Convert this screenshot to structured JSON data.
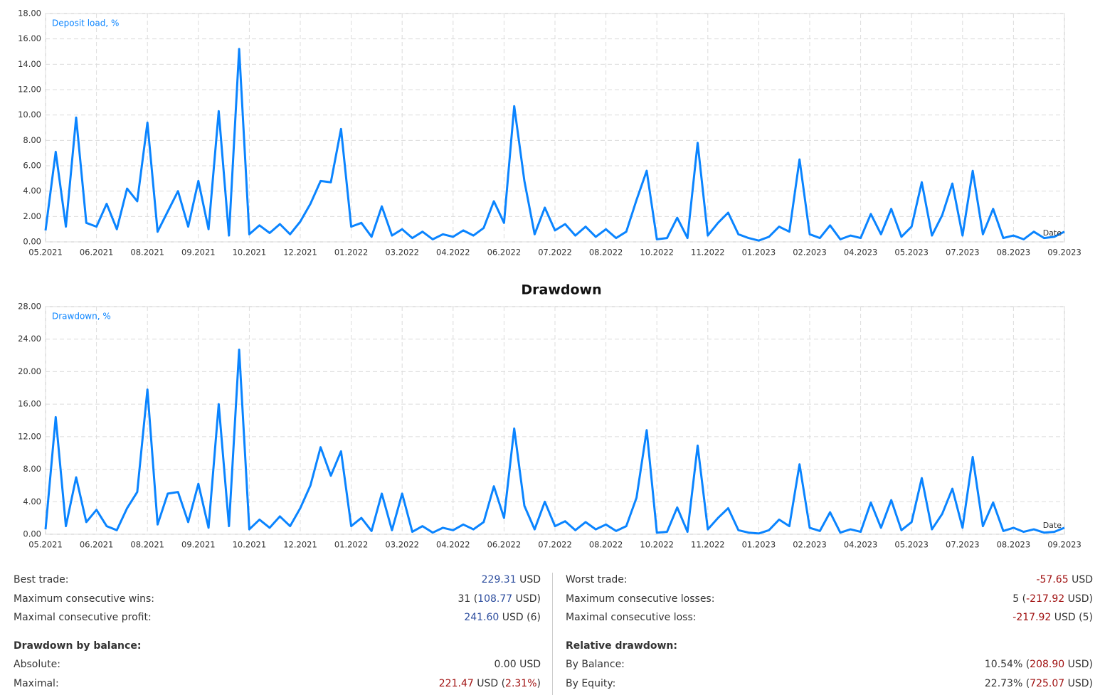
{
  "chart_data": [
    {
      "type": "line",
      "series": [
        {
          "name": "Deposit load, %",
          "color": "#0a84ff",
          "values": [
            0.9,
            7.1,
            1.2,
            9.8,
            1.5,
            1.2,
            3.0,
            1.0,
            4.2,
            3.2,
            9.4,
            0.8,
            2.4,
            4.0,
            1.2,
            4.8,
            1.0,
            10.3,
            0.5,
            15.2,
            0.6,
            1.3,
            0.7,
            1.4,
            0.6,
            1.6,
            3.0,
            4.8,
            4.7,
            8.9,
            1.2,
            1.5,
            0.4,
            2.8,
            0.5,
            1.0,
            0.3,
            0.8,
            0.2,
            0.6,
            0.4,
            0.9,
            0.5,
            1.1,
            3.2,
            1.5,
            10.7,
            4.8,
            0.6,
            2.7,
            0.9,
            1.4,
            0.5,
            1.2,
            0.4,
            1.0,
            0.3,
            0.8,
            3.3,
            5.6,
            0.2,
            0.3,
            1.9,
            0.3,
            7.8,
            0.5,
            1.5,
            2.3,
            0.6,
            0.3,
            0.1,
            0.4,
            1.2,
            0.8,
            6.5,
            0.6,
            0.3,
            1.3,
            0.2,
            0.5,
            0.3,
            2.2,
            0.6,
            2.6,
            0.4,
            1.2,
            4.7,
            0.5,
            2.1,
            4.6,
            0.5,
            5.6,
            0.6,
            2.6,
            0.3,
            0.5,
            0.2,
            0.8,
            0.3,
            0.4,
            0.8
          ]
        }
      ],
      "x": [
        0,
        0.2,
        0.4,
        0.6,
        0.8,
        1,
        1.2,
        1.4,
        1.6,
        1.8,
        2,
        2.2,
        2.4,
        2.6,
        2.8,
        3,
        3.2,
        3.4,
        3.6,
        3.8,
        4,
        4.2,
        4.4,
        4.6,
        4.8,
        5,
        5.2,
        5.4,
        5.6,
        5.8,
        6,
        6.2,
        6.4,
        6.6,
        6.8,
        7,
        7.2,
        7.4,
        7.6,
        7.8,
        8,
        8.2,
        8.4,
        8.6,
        8.8,
        9,
        9.2,
        9.4,
        9.6,
        9.8,
        10,
        10.2,
        10.4,
        10.6,
        10.8,
        11,
        11.2,
        11.4,
        11.6,
        11.8,
        12,
        12.2,
        12.4,
        12.6,
        12.8,
        13,
        13.2,
        13.4,
        13.6,
        13.8,
        14,
        14.2,
        14.4,
        14.6,
        14.8,
        15,
        15.2,
        15.4,
        15.6,
        15.8,
        16,
        16.2,
        16.4,
        16.6,
        16.8,
        17,
        17.2,
        17.4,
        17.6,
        17.8,
        18,
        18.2,
        18.4,
        18.6,
        18.8,
        19,
        19.2,
        19.4,
        19.6,
        19.8,
        20
      ],
      "x_label": "Date",
      "xlim": [
        0,
        20
      ],
      "xticks": [
        {
          "value": 0,
          "label": "05.2021"
        },
        {
          "value": 1,
          "label": "06.2021"
        },
        {
          "value": 2,
          "label": "08.2021"
        },
        {
          "value": 3,
          "label": "09.2021"
        },
        {
          "value": 4,
          "label": "10.2021"
        },
        {
          "value": 5,
          "label": "12.2021"
        },
        {
          "value": 6,
          "label": "01.2022"
        },
        {
          "value": 7,
          "label": "03.2022"
        },
        {
          "value": 8,
          "label": "04.2022"
        },
        {
          "value": 9,
          "label": "06.2022"
        },
        {
          "value": 10,
          "label": "07.2022"
        },
        {
          "value": 11,
          "label": "08.2022"
        },
        {
          "value": 12,
          "label": "10.2022"
        },
        {
          "value": 13,
          "label": "11.2022"
        },
        {
          "value": 14,
          "label": "01.2023"
        },
        {
          "value": 15,
          "label": "02.2023"
        },
        {
          "value": 16,
          "label": "04.2023"
        },
        {
          "value": 17,
          "label": "05.2023"
        },
        {
          "value": 18,
          "label": "07.2023"
        },
        {
          "value": 19,
          "label": "08.2023"
        },
        {
          "value": 20,
          "label": "09.2023"
        }
      ],
      "ylim": [
        0,
        18
      ],
      "yticks": [
        {
          "value": 0,
          "label": "0.00"
        },
        {
          "value": 2,
          "label": "2.00"
        },
        {
          "value": 4,
          "label": "4.00"
        },
        {
          "value": 6,
          "label": "6.00"
        },
        {
          "value": 8,
          "label": "8.00"
        },
        {
          "value": 10,
          "label": "10.00"
        },
        {
          "value": 12,
          "label": "12.00"
        },
        {
          "value": 14,
          "label": "14.00"
        },
        {
          "value": 16,
          "label": "16.00"
        },
        {
          "value": 18,
          "label": "18.00"
        }
      ],
      "grid": true
    },
    {
      "type": "line",
      "title": "Drawdown",
      "series": [
        {
          "name": "Drawdown, %",
          "color": "#0a84ff",
          "values": [
            0.6,
            14.4,
            1.0,
            7.0,
            1.5,
            3.0,
            1.0,
            0.5,
            3.2,
            5.2,
            17.8,
            1.2,
            5.0,
            5.2,
            1.5,
            6.2,
            0.8,
            16.0,
            1.0,
            22.7,
            0.6,
            1.8,
            0.8,
            2.2,
            1.0,
            3.2,
            6.0,
            10.7,
            7.2,
            10.2,
            1.0,
            2.0,
            0.4,
            5.0,
            0.5,
            5.0,
            0.3,
            1.0,
            0.2,
            0.8,
            0.5,
            1.2,
            0.6,
            1.5,
            5.9,
            2.0,
            13.0,
            3.5,
            0.6,
            4.0,
            1.0,
            1.6,
            0.5,
            1.5,
            0.6,
            1.2,
            0.4,
            1.0,
            4.5,
            12.8,
            0.2,
            0.3,
            3.3,
            0.3,
            10.9,
            0.6,
            2.0,
            3.2,
            0.5,
            0.2,
            0.1,
            0.5,
            1.8,
            1.0,
            8.6,
            0.8,
            0.4,
            2.7,
            0.2,
            0.6,
            0.3,
            3.9,
            0.8,
            4.2,
            0.5,
            1.5,
            6.9,
            0.6,
            2.5,
            5.6,
            0.8,
            9.5,
            1.0,
            3.9,
            0.4,
            0.8,
            0.3,
            0.6,
            0.2,
            0.3,
            0.8
          ]
        }
      ],
      "x": [
        0,
        0.2,
        0.4,
        0.6,
        0.8,
        1,
        1.2,
        1.4,
        1.6,
        1.8,
        2,
        2.2,
        2.4,
        2.6,
        2.8,
        3,
        3.2,
        3.4,
        3.6,
        3.8,
        4,
        4.2,
        4.4,
        4.6,
        4.8,
        5,
        5.2,
        5.4,
        5.6,
        5.8,
        6,
        6.2,
        6.4,
        6.6,
        6.8,
        7,
        7.2,
        7.4,
        7.6,
        7.8,
        8,
        8.2,
        8.4,
        8.6,
        8.8,
        9,
        9.2,
        9.4,
        9.6,
        9.8,
        10,
        10.2,
        10.4,
        10.6,
        10.8,
        11,
        11.2,
        11.4,
        11.6,
        11.8,
        12,
        12.2,
        12.4,
        12.6,
        12.8,
        13,
        13.2,
        13.4,
        13.6,
        13.8,
        14,
        14.2,
        14.4,
        14.6,
        14.8,
        15,
        15.2,
        15.4,
        15.6,
        15.8,
        16,
        16.2,
        16.4,
        16.6,
        16.8,
        17,
        17.2,
        17.4,
        17.6,
        17.8,
        18,
        18.2,
        18.4,
        18.6,
        18.8,
        19,
        19.2,
        19.4,
        19.6,
        19.8,
        20
      ],
      "x_label": "Date",
      "xlim": [
        0,
        20
      ],
      "xticks": [
        {
          "value": 0,
          "label": "05.2021"
        },
        {
          "value": 1,
          "label": "06.2021"
        },
        {
          "value": 2,
          "label": "08.2021"
        },
        {
          "value": 3,
          "label": "09.2021"
        },
        {
          "value": 4,
          "label": "10.2021"
        },
        {
          "value": 5,
          "label": "12.2021"
        },
        {
          "value": 6,
          "label": "01.2022"
        },
        {
          "value": 7,
          "label": "03.2022"
        },
        {
          "value": 8,
          "label": "04.2022"
        },
        {
          "value": 9,
          "label": "06.2022"
        },
        {
          "value": 10,
          "label": "07.2022"
        },
        {
          "value": 11,
          "label": "08.2022"
        },
        {
          "value": 12,
          "label": "10.2022"
        },
        {
          "value": 13,
          "label": "11.2022"
        },
        {
          "value": 14,
          "label": "01.2023"
        },
        {
          "value": 15,
          "label": "02.2023"
        },
        {
          "value": 16,
          "label": "04.2023"
        },
        {
          "value": 17,
          "label": "05.2023"
        },
        {
          "value": 18,
          "label": "07.2023"
        },
        {
          "value": 19,
          "label": "08.2023"
        },
        {
          "value": 20,
          "label": "09.2023"
        }
      ],
      "ylim": [
        0,
        28
      ],
      "yticks": [
        {
          "value": 0,
          "label": "0.00"
        },
        {
          "value": 4,
          "label": "4.00"
        },
        {
          "value": 8,
          "label": "8.00"
        },
        {
          "value": 12,
          "label": "12.00"
        },
        {
          "value": 16,
          "label": "16.00"
        },
        {
          "value": 20,
          "label": "20.00"
        },
        {
          "value": 24,
          "label": "24.00"
        },
        {
          "value": 28,
          "label": "28.00"
        }
      ],
      "grid": true
    }
  ],
  "stats": [
    {
      "rows": [
        {
          "label": "Best trade:",
          "parts": [
            {
              "text": "229.31",
              "tone": "pos"
            },
            {
              "text": " USD"
            }
          ]
        },
        {
          "label": "Maximum consecutive wins:",
          "parts": [
            {
              "text": "31 ("
            },
            {
              "text": "108.77",
              "tone": "pos"
            },
            {
              "text": " USD)"
            }
          ]
        },
        {
          "label": "Maximal consecutive profit:",
          "parts": [
            {
              "text": "241.60",
              "tone": "pos"
            },
            {
              "text": " USD (6)"
            }
          ]
        },
        {
          "section": "Drawdown by balance:"
        },
        {
          "label": "Absolute:",
          "parts": [
            {
              "text": "0.00 USD"
            }
          ]
        },
        {
          "label": "Maximal:",
          "parts": [
            {
              "text": "221.47",
              "tone": "neg"
            },
            {
              "text": " USD ("
            },
            {
              "text": "2.31%",
              "tone": "neg"
            },
            {
              "text": ")"
            }
          ]
        }
      ]
    },
    {
      "rows": [
        {
          "label": "Worst trade:",
          "parts": [
            {
              "text": "-57.65",
              "tone": "neg"
            },
            {
              "text": " USD"
            }
          ]
        },
        {
          "label": "Maximum consecutive losses:",
          "parts": [
            {
              "text": "5 ("
            },
            {
              "text": "-217.92",
              "tone": "neg"
            },
            {
              "text": " USD)"
            }
          ]
        },
        {
          "label": "Maximal consecutive loss:",
          "parts": [
            {
              "text": "-217.92",
              "tone": "neg"
            },
            {
              "text": " USD (5)"
            }
          ]
        },
        {
          "section": "Relative drawdown:"
        },
        {
          "label": "By Balance:",
          "parts": [
            {
              "text": "10.54% ("
            },
            {
              "text": "208.90",
              "tone": "neg"
            },
            {
              "text": " USD)"
            }
          ]
        },
        {
          "label": "By Equity:",
          "parts": [
            {
              "text": "22.73% ("
            },
            {
              "text": "725.07",
              "tone": "neg"
            },
            {
              "text": " USD)"
            }
          ]
        }
      ]
    }
  ]
}
